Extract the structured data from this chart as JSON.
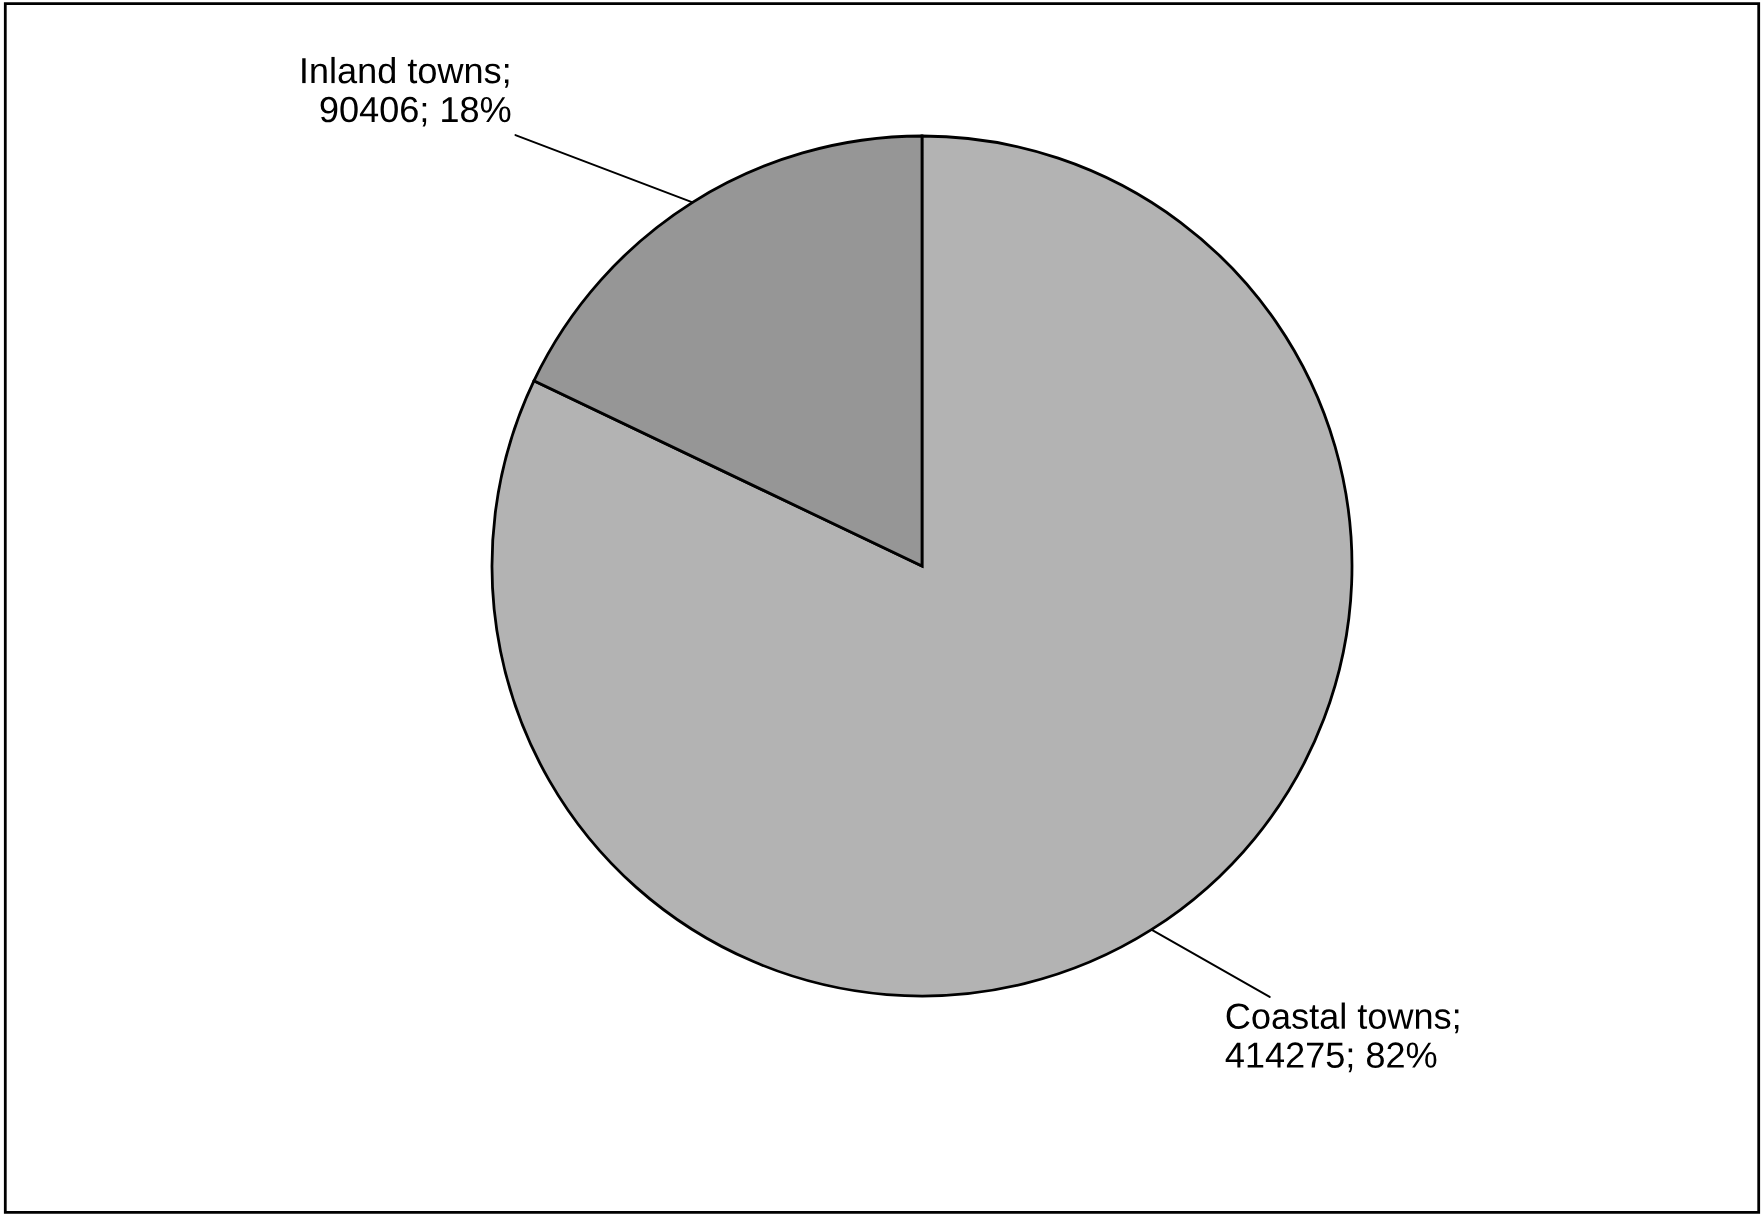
{
  "chart_data": {
    "type": "pie",
    "categories": [
      "Coastal towns",
      "Inland towns"
    ],
    "values": [
      414275,
      90406
    ],
    "value_labels": [
      ";\n414275; 82%",
      ";\n90406; 18%"
    ],
    "colors": [
      "#b3b3b3",
      "#969696"
    ]
  }
}
